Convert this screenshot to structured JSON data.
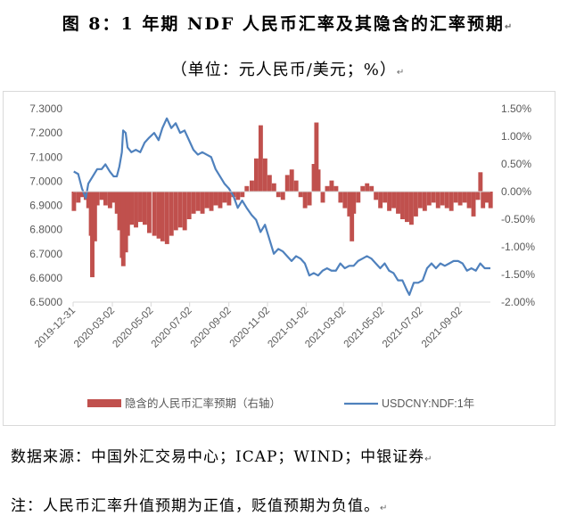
{
  "header": {
    "title": "图 8：1 年期 NDF 人民币汇率及其隐含的汇率预期",
    "subtitle": "（单位：元人民币/美元；%）"
  },
  "footer": {
    "source": "数据来源：中国外汇交易中心；ICAP；WIND；中银证券",
    "note": "注：人民币汇率升值预期为正值，贬值预期为负值。"
  },
  "colors": {
    "bar": "#c0504d",
    "line": "#4f81bd",
    "axis": "#d9d9d9",
    "text": "#595959"
  },
  "chart_data": {
    "type": "bar+line",
    "y_left": {
      "range": [
        6.5,
        7.3
      ],
      "ticks": [
        "6.5000",
        "6.6000",
        "6.7000",
        "6.8000",
        "6.9000",
        "7.0000",
        "7.1000",
        "7.2000",
        "7.3000"
      ]
    },
    "y_right": {
      "range": [
        -2.0,
        1.5
      ],
      "ticks": [
        "-2.00%",
        "-1.50%",
        "-1.00%",
        "-0.50%",
        "0.00%",
        "0.50%",
        "1.00%",
        "1.50%"
      ]
    },
    "x_ticks": [
      "2019-12-31",
      "2020-03-02",
      "2020-05-02",
      "2020-07-02",
      "2020-09-02",
      "2020-11-02",
      "2021-01-02",
      "2021-03-02",
      "2021-05-02",
      "2021-07-02",
      "2021-09-02"
    ],
    "x_start": "2019-12-31",
    "x_end": "2021-10-20",
    "legend": [
      "隐含的人民币汇率预期（右轴）",
      "USDCNY:NDF:1年"
    ],
    "legend_position": "bottom",
    "grid": false,
    "series": [
      {
        "name": "USDCNY:NDF:1年",
        "type": "line",
        "axis": "left",
        "points": [
          [
            "2020-01-01",
            7.04
          ],
          [
            "2020-01-08",
            7.03
          ],
          [
            "2020-01-14",
            6.97
          ],
          [
            "2020-01-20",
            6.93
          ],
          [
            "2020-01-24",
            6.99
          ],
          [
            "2020-01-31",
            7.02
          ],
          [
            "2020-02-07",
            7.05
          ],
          [
            "2020-02-14",
            7.05
          ],
          [
            "2020-02-20",
            7.07
          ],
          [
            "2020-02-27",
            7.04
          ],
          [
            "2020-03-04",
            7.02
          ],
          [
            "2020-03-09",
            7.02
          ],
          [
            "2020-03-13",
            7.06
          ],
          [
            "2020-03-17",
            7.12
          ],
          [
            "2020-03-19",
            7.21
          ],
          [
            "2020-03-23",
            7.2
          ],
          [
            "2020-03-26",
            7.14
          ],
          [
            "2020-04-01",
            7.12
          ],
          [
            "2020-04-08",
            7.13
          ],
          [
            "2020-04-15",
            7.12
          ],
          [
            "2020-04-22",
            7.16
          ],
          [
            "2020-04-29",
            7.18
          ],
          [
            "2020-05-07",
            7.2
          ],
          [
            "2020-05-14",
            7.17
          ],
          [
            "2020-05-20",
            7.22
          ],
          [
            "2020-05-27",
            7.26
          ],
          [
            "2020-06-03",
            7.22
          ],
          [
            "2020-06-10",
            7.24
          ],
          [
            "2020-06-17",
            7.2
          ],
          [
            "2020-06-24",
            7.21
          ],
          [
            "2020-07-01",
            7.17
          ],
          [
            "2020-07-08",
            7.13
          ],
          [
            "2020-07-15",
            7.11
          ],
          [
            "2020-07-22",
            7.12
          ],
          [
            "2020-07-29",
            7.11
          ],
          [
            "2020-08-05",
            7.1
          ],
          [
            "2020-08-12",
            7.05
          ],
          [
            "2020-08-19",
            7.02
          ],
          [
            "2020-08-26",
            6.99
          ],
          [
            "2020-09-02",
            6.97
          ],
          [
            "2020-09-09",
            6.94
          ],
          [
            "2020-09-16",
            6.89
          ],
          [
            "2020-09-23",
            6.92
          ],
          [
            "2020-09-30",
            6.89
          ],
          [
            "2020-10-08",
            6.86
          ],
          [
            "2020-10-15",
            6.84
          ],
          [
            "2020-10-22",
            6.79
          ],
          [
            "2020-10-29",
            6.82
          ],
          [
            "2020-11-05",
            6.76
          ],
          [
            "2020-11-12",
            6.7
          ],
          [
            "2020-11-19",
            6.72
          ],
          [
            "2020-11-26",
            6.71
          ],
          [
            "2020-12-03",
            6.69
          ],
          [
            "2020-12-10",
            6.67
          ],
          [
            "2020-12-17",
            6.69
          ],
          [
            "2020-12-24",
            6.68
          ],
          [
            "2020-12-31",
            6.66
          ],
          [
            "2021-01-07",
            6.61
          ],
          [
            "2021-01-14",
            6.62
          ],
          [
            "2021-01-21",
            6.61
          ],
          [
            "2021-01-28",
            6.63
          ],
          [
            "2021-02-04",
            6.64
          ],
          [
            "2021-02-11",
            6.63
          ],
          [
            "2021-02-18",
            6.63
          ],
          [
            "2021-02-25",
            6.66
          ],
          [
            "2021-03-04",
            6.64
          ],
          [
            "2021-03-11",
            6.65
          ],
          [
            "2021-03-18",
            6.65
          ],
          [
            "2021-03-25",
            6.67
          ],
          [
            "2021-04-01",
            6.68
          ],
          [
            "2021-04-08",
            6.69
          ],
          [
            "2021-04-15",
            6.68
          ],
          [
            "2021-04-22",
            6.66
          ],
          [
            "2021-04-29",
            6.64
          ],
          [
            "2021-05-06",
            6.66
          ],
          [
            "2021-05-13",
            6.63
          ],
          [
            "2021-05-20",
            6.62
          ],
          [
            "2021-05-27",
            6.59
          ],
          [
            "2021-06-03",
            6.59
          ],
          [
            "2021-06-10",
            6.55
          ],
          [
            "2021-06-14",
            6.53
          ],
          [
            "2021-06-21",
            6.58
          ],
          [
            "2021-06-28",
            6.58
          ],
          [
            "2021-07-05",
            6.59
          ],
          [
            "2021-07-12",
            6.64
          ],
          [
            "2021-07-19",
            6.66
          ],
          [
            "2021-07-26",
            6.64
          ],
          [
            "2021-08-02",
            6.66
          ],
          [
            "2021-08-09",
            6.65
          ],
          [
            "2021-08-16",
            6.66
          ],
          [
            "2021-08-23",
            6.67
          ],
          [
            "2021-08-30",
            6.67
          ],
          [
            "2021-09-06",
            6.66
          ],
          [
            "2021-09-13",
            6.63
          ],
          [
            "2021-09-20",
            6.64
          ],
          [
            "2021-09-27",
            6.63
          ],
          [
            "2021-10-04",
            6.66
          ],
          [
            "2021-10-11",
            6.64
          ],
          [
            "2021-10-20",
            6.64
          ]
        ]
      },
      {
        "name": "隐含的人民币汇率预期（右轴）",
        "type": "bar",
        "axis": "right",
        "points": [
          [
            "2020-01-01",
            -0.35
          ],
          [
            "2020-01-08",
            -0.2
          ],
          [
            "2020-01-14",
            -0.1
          ],
          [
            "2020-01-20",
            -0.15
          ],
          [
            "2020-01-24",
            -0.3
          ],
          [
            "2020-01-28",
            -0.8
          ],
          [
            "2020-01-30",
            -1.55
          ],
          [
            "2020-02-03",
            -0.9
          ],
          [
            "2020-02-07",
            -0.25
          ],
          [
            "2020-02-14",
            -0.15
          ],
          [
            "2020-02-20",
            -0.25
          ],
          [
            "2020-02-27",
            -0.3
          ],
          [
            "2020-03-04",
            -0.2
          ],
          [
            "2020-03-09",
            -0.4
          ],
          [
            "2020-03-13",
            -0.7
          ],
          [
            "2020-03-17",
            -1.2
          ],
          [
            "2020-03-19",
            -1.35
          ],
          [
            "2020-03-23",
            -1.1
          ],
          [
            "2020-03-26",
            -0.8
          ],
          [
            "2020-04-01",
            -0.6
          ],
          [
            "2020-04-08",
            -0.65
          ],
          [
            "2020-04-15",
            -0.55
          ],
          [
            "2020-04-22",
            -0.6
          ],
          [
            "2020-04-29",
            -0.75
          ],
          [
            "2020-05-07",
            -0.8
          ],
          [
            "2020-05-14",
            -0.85
          ],
          [
            "2020-05-20",
            -0.9
          ],
          [
            "2020-05-27",
            -0.95
          ],
          [
            "2020-06-03",
            -0.8
          ],
          [
            "2020-06-10",
            -0.7
          ],
          [
            "2020-06-17",
            -0.65
          ],
          [
            "2020-06-24",
            -0.7
          ],
          [
            "2020-07-01",
            -0.5
          ],
          [
            "2020-07-08",
            -0.4
          ],
          [
            "2020-07-15",
            -0.35
          ],
          [
            "2020-07-22",
            -0.4
          ],
          [
            "2020-07-29",
            -0.3
          ],
          [
            "2020-08-05",
            -0.35
          ],
          [
            "2020-08-12",
            -0.25
          ],
          [
            "2020-08-19",
            -0.3
          ],
          [
            "2020-08-26",
            -0.2
          ],
          [
            "2020-09-02",
            -0.25
          ],
          [
            "2020-09-09",
            -0.1
          ],
          [
            "2020-09-16",
            -0.15
          ],
          [
            "2020-09-23",
            -0.1
          ],
          [
            "2020-09-30",
            0.1
          ],
          [
            "2020-10-08",
            0.2
          ],
          [
            "2020-10-15",
            0.6
          ],
          [
            "2020-10-22",
            1.2
          ],
          [
            "2020-10-29",
            0.6
          ],
          [
            "2020-11-05",
            0.3
          ],
          [
            "2020-11-12",
            0.15
          ],
          [
            "2020-11-19",
            -0.1
          ],
          [
            "2020-11-26",
            -0.15
          ],
          [
            "2020-12-03",
            0.3
          ],
          [
            "2020-12-10",
            0.4
          ],
          [
            "2020-12-17",
            0.2
          ],
          [
            "2020-12-24",
            -0.1
          ],
          [
            "2020-12-31",
            -0.3
          ],
          [
            "2021-01-07",
            -0.25
          ],
          [
            "2021-01-14",
            0.5
          ],
          [
            "2021-01-18",
            1.25
          ],
          [
            "2021-01-21",
            0.4
          ],
          [
            "2021-01-28",
            -0.2
          ],
          [
            "2021-02-04",
            0.1
          ],
          [
            "2021-02-11",
            0.2
          ],
          [
            "2021-02-18",
            0.1
          ],
          [
            "2021-02-25",
            -0.2
          ],
          [
            "2021-03-04",
            -0.3
          ],
          [
            "2021-03-11",
            -0.45
          ],
          [
            "2021-03-15",
            -0.9
          ],
          [
            "2021-03-18",
            -0.4
          ],
          [
            "2021-03-25",
            -0.2
          ],
          [
            "2021-04-01",
            0.1
          ],
          [
            "2021-04-08",
            0.15
          ],
          [
            "2021-04-15",
            0.1
          ],
          [
            "2021-04-22",
            -0.15
          ],
          [
            "2021-04-29",
            -0.3
          ],
          [
            "2021-05-06",
            -0.2
          ],
          [
            "2021-05-13",
            -0.35
          ],
          [
            "2021-05-20",
            -0.3
          ],
          [
            "2021-05-27",
            -0.4
          ],
          [
            "2021-06-03",
            -0.5
          ],
          [
            "2021-06-10",
            -0.55
          ],
          [
            "2021-06-17",
            -0.6
          ],
          [
            "2021-06-24",
            -0.45
          ],
          [
            "2021-07-01",
            -0.3
          ],
          [
            "2021-07-08",
            -0.35
          ],
          [
            "2021-07-15",
            -0.25
          ],
          [
            "2021-07-22",
            -0.2
          ],
          [
            "2021-07-29",
            -0.3
          ],
          [
            "2021-08-05",
            -0.25
          ],
          [
            "2021-08-12",
            -0.3
          ],
          [
            "2021-08-19",
            -0.35
          ],
          [
            "2021-08-26",
            -0.2
          ],
          [
            "2021-09-02",
            -0.25
          ],
          [
            "2021-09-09",
            -0.2
          ],
          [
            "2021-09-16",
            -0.3
          ],
          [
            "2021-09-23",
            -0.45
          ],
          [
            "2021-09-30",
            -0.15
          ],
          [
            "2021-10-04",
            0.35
          ],
          [
            "2021-10-08",
            -0.3
          ],
          [
            "2021-10-14",
            -0.2
          ],
          [
            "2021-10-20",
            -0.3
          ]
        ]
      }
    ]
  }
}
